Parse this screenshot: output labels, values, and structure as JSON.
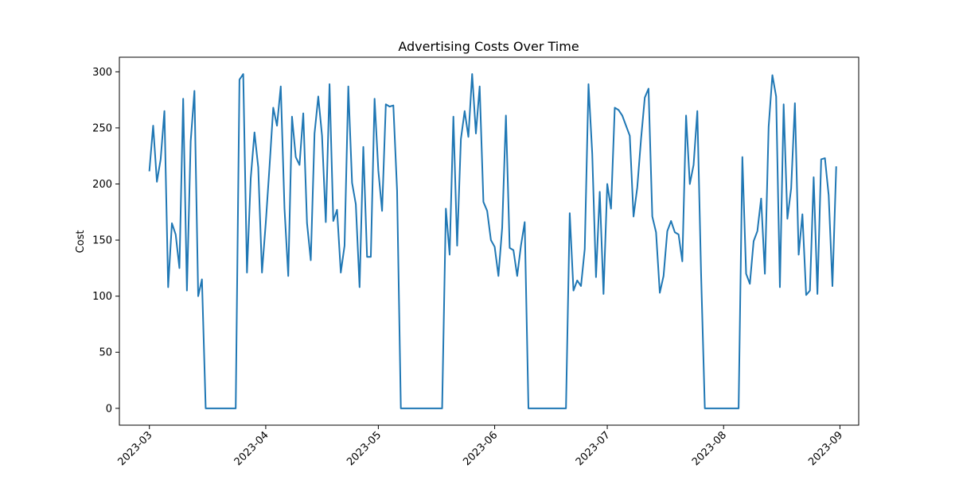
{
  "chart_data": {
    "type": "line",
    "title": "Advertising Costs Over Time",
    "xlabel": "",
    "ylabel": "Cost",
    "line_color": "#1f77b4",
    "grid": false,
    "legend": "none",
    "xlim": [
      "2023-02-21",
      "2023-09-06"
    ],
    "ylim": [
      -15,
      313
    ],
    "x_ticks": [
      {
        "date": "2023-03-01",
        "label": "2023-03"
      },
      {
        "date": "2023-04-01",
        "label": "2023-04"
      },
      {
        "date": "2023-05-01",
        "label": "2023-05"
      },
      {
        "date": "2023-06-01",
        "label": "2023-06"
      },
      {
        "date": "2023-07-01",
        "label": "2023-07"
      },
      {
        "date": "2023-08-01",
        "label": "2023-08"
      },
      {
        "date": "2023-09-01",
        "label": "2023-09"
      }
    ],
    "y_ticks": [
      0,
      50,
      100,
      150,
      200,
      250,
      300
    ],
    "series": [
      {
        "points": [
          [
            "2023-03-01",
            212
          ],
          [
            "2023-03-02",
            252
          ],
          [
            "2023-03-03",
            202
          ],
          [
            "2023-03-04",
            222
          ],
          [
            "2023-03-05",
            265
          ],
          [
            "2023-03-06",
            108
          ],
          [
            "2023-03-07",
            165
          ],
          [
            "2023-03-08",
            155
          ],
          [
            "2023-03-09",
            125
          ],
          [
            "2023-03-10",
            276
          ],
          [
            "2023-03-11",
            105
          ],
          [
            "2023-03-12",
            238
          ],
          [
            "2023-03-13",
            283
          ],
          [
            "2023-03-14",
            100
          ],
          [
            "2023-03-15",
            115
          ],
          [
            "2023-03-16",
            0
          ],
          [
            "2023-03-24",
            0
          ],
          [
            "2023-03-25",
            293
          ],
          [
            "2023-03-26",
            298
          ],
          [
            "2023-03-27",
            121
          ],
          [
            "2023-03-28",
            205
          ],
          [
            "2023-03-29",
            246
          ],
          [
            "2023-03-30",
            215
          ],
          [
            "2023-03-31",
            121
          ],
          [
            "2023-04-01",
            165
          ],
          [
            "2023-04-02",
            215
          ],
          [
            "2023-04-03",
            268
          ],
          [
            "2023-04-04",
            252
          ],
          [
            "2023-04-05",
            287
          ],
          [
            "2023-04-06",
            178
          ],
          [
            "2023-04-07",
            118
          ],
          [
            "2023-04-08",
            260
          ],
          [
            "2023-04-09",
            224
          ],
          [
            "2023-04-10",
            217
          ],
          [
            "2023-04-11",
            263
          ],
          [
            "2023-04-12",
            165
          ],
          [
            "2023-04-13",
            132
          ],
          [
            "2023-04-14",
            245
          ],
          [
            "2023-04-15",
            278
          ],
          [
            "2023-04-16",
            243
          ],
          [
            "2023-04-17",
            166
          ],
          [
            "2023-04-18",
            289
          ],
          [
            "2023-04-19",
            167
          ],
          [
            "2023-04-20",
            177
          ],
          [
            "2023-04-21",
            121
          ],
          [
            "2023-04-22",
            145
          ],
          [
            "2023-04-23",
            287
          ],
          [
            "2023-04-24",
            201
          ],
          [
            "2023-04-25",
            182
          ],
          [
            "2023-04-26",
            108
          ],
          [
            "2023-04-27",
            233
          ],
          [
            "2023-04-28",
            135
          ],
          [
            "2023-04-29",
            135
          ],
          [
            "2023-04-30",
            276
          ],
          [
            "2023-05-01",
            212
          ],
          [
            "2023-05-02",
            176
          ],
          [
            "2023-05-03",
            271
          ],
          [
            "2023-05-04",
            269
          ],
          [
            "2023-05-05",
            270
          ],
          [
            "2023-05-06",
            194
          ],
          [
            "2023-05-07",
            0
          ],
          [
            "2023-05-18",
            0
          ],
          [
            "2023-05-19",
            178
          ],
          [
            "2023-05-20",
            137
          ],
          [
            "2023-05-21",
            260
          ],
          [
            "2023-05-22",
            145
          ],
          [
            "2023-05-23",
            240
          ],
          [
            "2023-05-24",
            265
          ],
          [
            "2023-05-25",
            242
          ],
          [
            "2023-05-26",
            298
          ],
          [
            "2023-05-27",
            245
          ],
          [
            "2023-05-28",
            287
          ],
          [
            "2023-05-29",
            184
          ],
          [
            "2023-05-30",
            176
          ],
          [
            "2023-05-31",
            150
          ],
          [
            "2023-06-01",
            144
          ],
          [
            "2023-06-02",
            118
          ],
          [
            "2023-06-03",
            161
          ],
          [
            "2023-06-04",
            261
          ],
          [
            "2023-06-05",
            143
          ],
          [
            "2023-06-06",
            141
          ],
          [
            "2023-06-07",
            118
          ],
          [
            "2023-06-08",
            145
          ],
          [
            "2023-06-09",
            166
          ],
          [
            "2023-06-10",
            0
          ],
          [
            "2023-06-20",
            0
          ],
          [
            "2023-06-21",
            174
          ],
          [
            "2023-06-22",
            105
          ],
          [
            "2023-06-23",
            114
          ],
          [
            "2023-06-24",
            109
          ],
          [
            "2023-06-25",
            142
          ],
          [
            "2023-06-26",
            289
          ],
          [
            "2023-06-27",
            227
          ],
          [
            "2023-06-28",
            117
          ],
          [
            "2023-06-29",
            193
          ],
          [
            "2023-06-30",
            102
          ],
          [
            "2023-07-01",
            200
          ],
          [
            "2023-07-02",
            178
          ],
          [
            "2023-07-03",
            268
          ],
          [
            "2023-07-04",
            266
          ],
          [
            "2023-07-05",
            261
          ],
          [
            "2023-07-06",
            252
          ],
          [
            "2023-07-07",
            243
          ],
          [
            "2023-07-08",
            171
          ],
          [
            "2023-07-09",
            197
          ],
          [
            "2023-07-10",
            240
          ],
          [
            "2023-07-11",
            277
          ],
          [
            "2023-07-12",
            285
          ],
          [
            "2023-07-13",
            171
          ],
          [
            "2023-07-14",
            157
          ],
          [
            "2023-07-15",
            103
          ],
          [
            "2023-07-16",
            118
          ],
          [
            "2023-07-17",
            158
          ],
          [
            "2023-07-18",
            167
          ],
          [
            "2023-07-19",
            157
          ],
          [
            "2023-07-20",
            155
          ],
          [
            "2023-07-21",
            131
          ],
          [
            "2023-07-22",
            261
          ],
          [
            "2023-07-23",
            200
          ],
          [
            "2023-07-24",
            217
          ],
          [
            "2023-07-25",
            265
          ],
          [
            "2023-07-26",
            120
          ],
          [
            "2023-07-27",
            0
          ],
          [
            "2023-08-05",
            0
          ],
          [
            "2023-08-06",
            224
          ],
          [
            "2023-08-07",
            120
          ],
          [
            "2023-08-08",
            111
          ],
          [
            "2023-08-09",
            149
          ],
          [
            "2023-08-10",
            158
          ],
          [
            "2023-08-11",
            187
          ],
          [
            "2023-08-12",
            120
          ],
          [
            "2023-08-13",
            251
          ],
          [
            "2023-08-14",
            297
          ],
          [
            "2023-08-15",
            278
          ],
          [
            "2023-08-16",
            108
          ],
          [
            "2023-08-17",
            271
          ],
          [
            "2023-08-18",
            169
          ],
          [
            "2023-08-19",
            196
          ],
          [
            "2023-08-20",
            272
          ],
          [
            "2023-08-21",
            137
          ],
          [
            "2023-08-22",
            173
          ],
          [
            "2023-08-23",
            101
          ],
          [
            "2023-08-24",
            105
          ],
          [
            "2023-08-25",
            206
          ],
          [
            "2023-08-26",
            102
          ],
          [
            "2023-08-27",
            222
          ],
          [
            "2023-08-28",
            223
          ],
          [
            "2023-08-29",
            190
          ],
          [
            "2023-08-30",
            109
          ],
          [
            "2023-08-31",
            215
          ]
        ]
      }
    ]
  }
}
